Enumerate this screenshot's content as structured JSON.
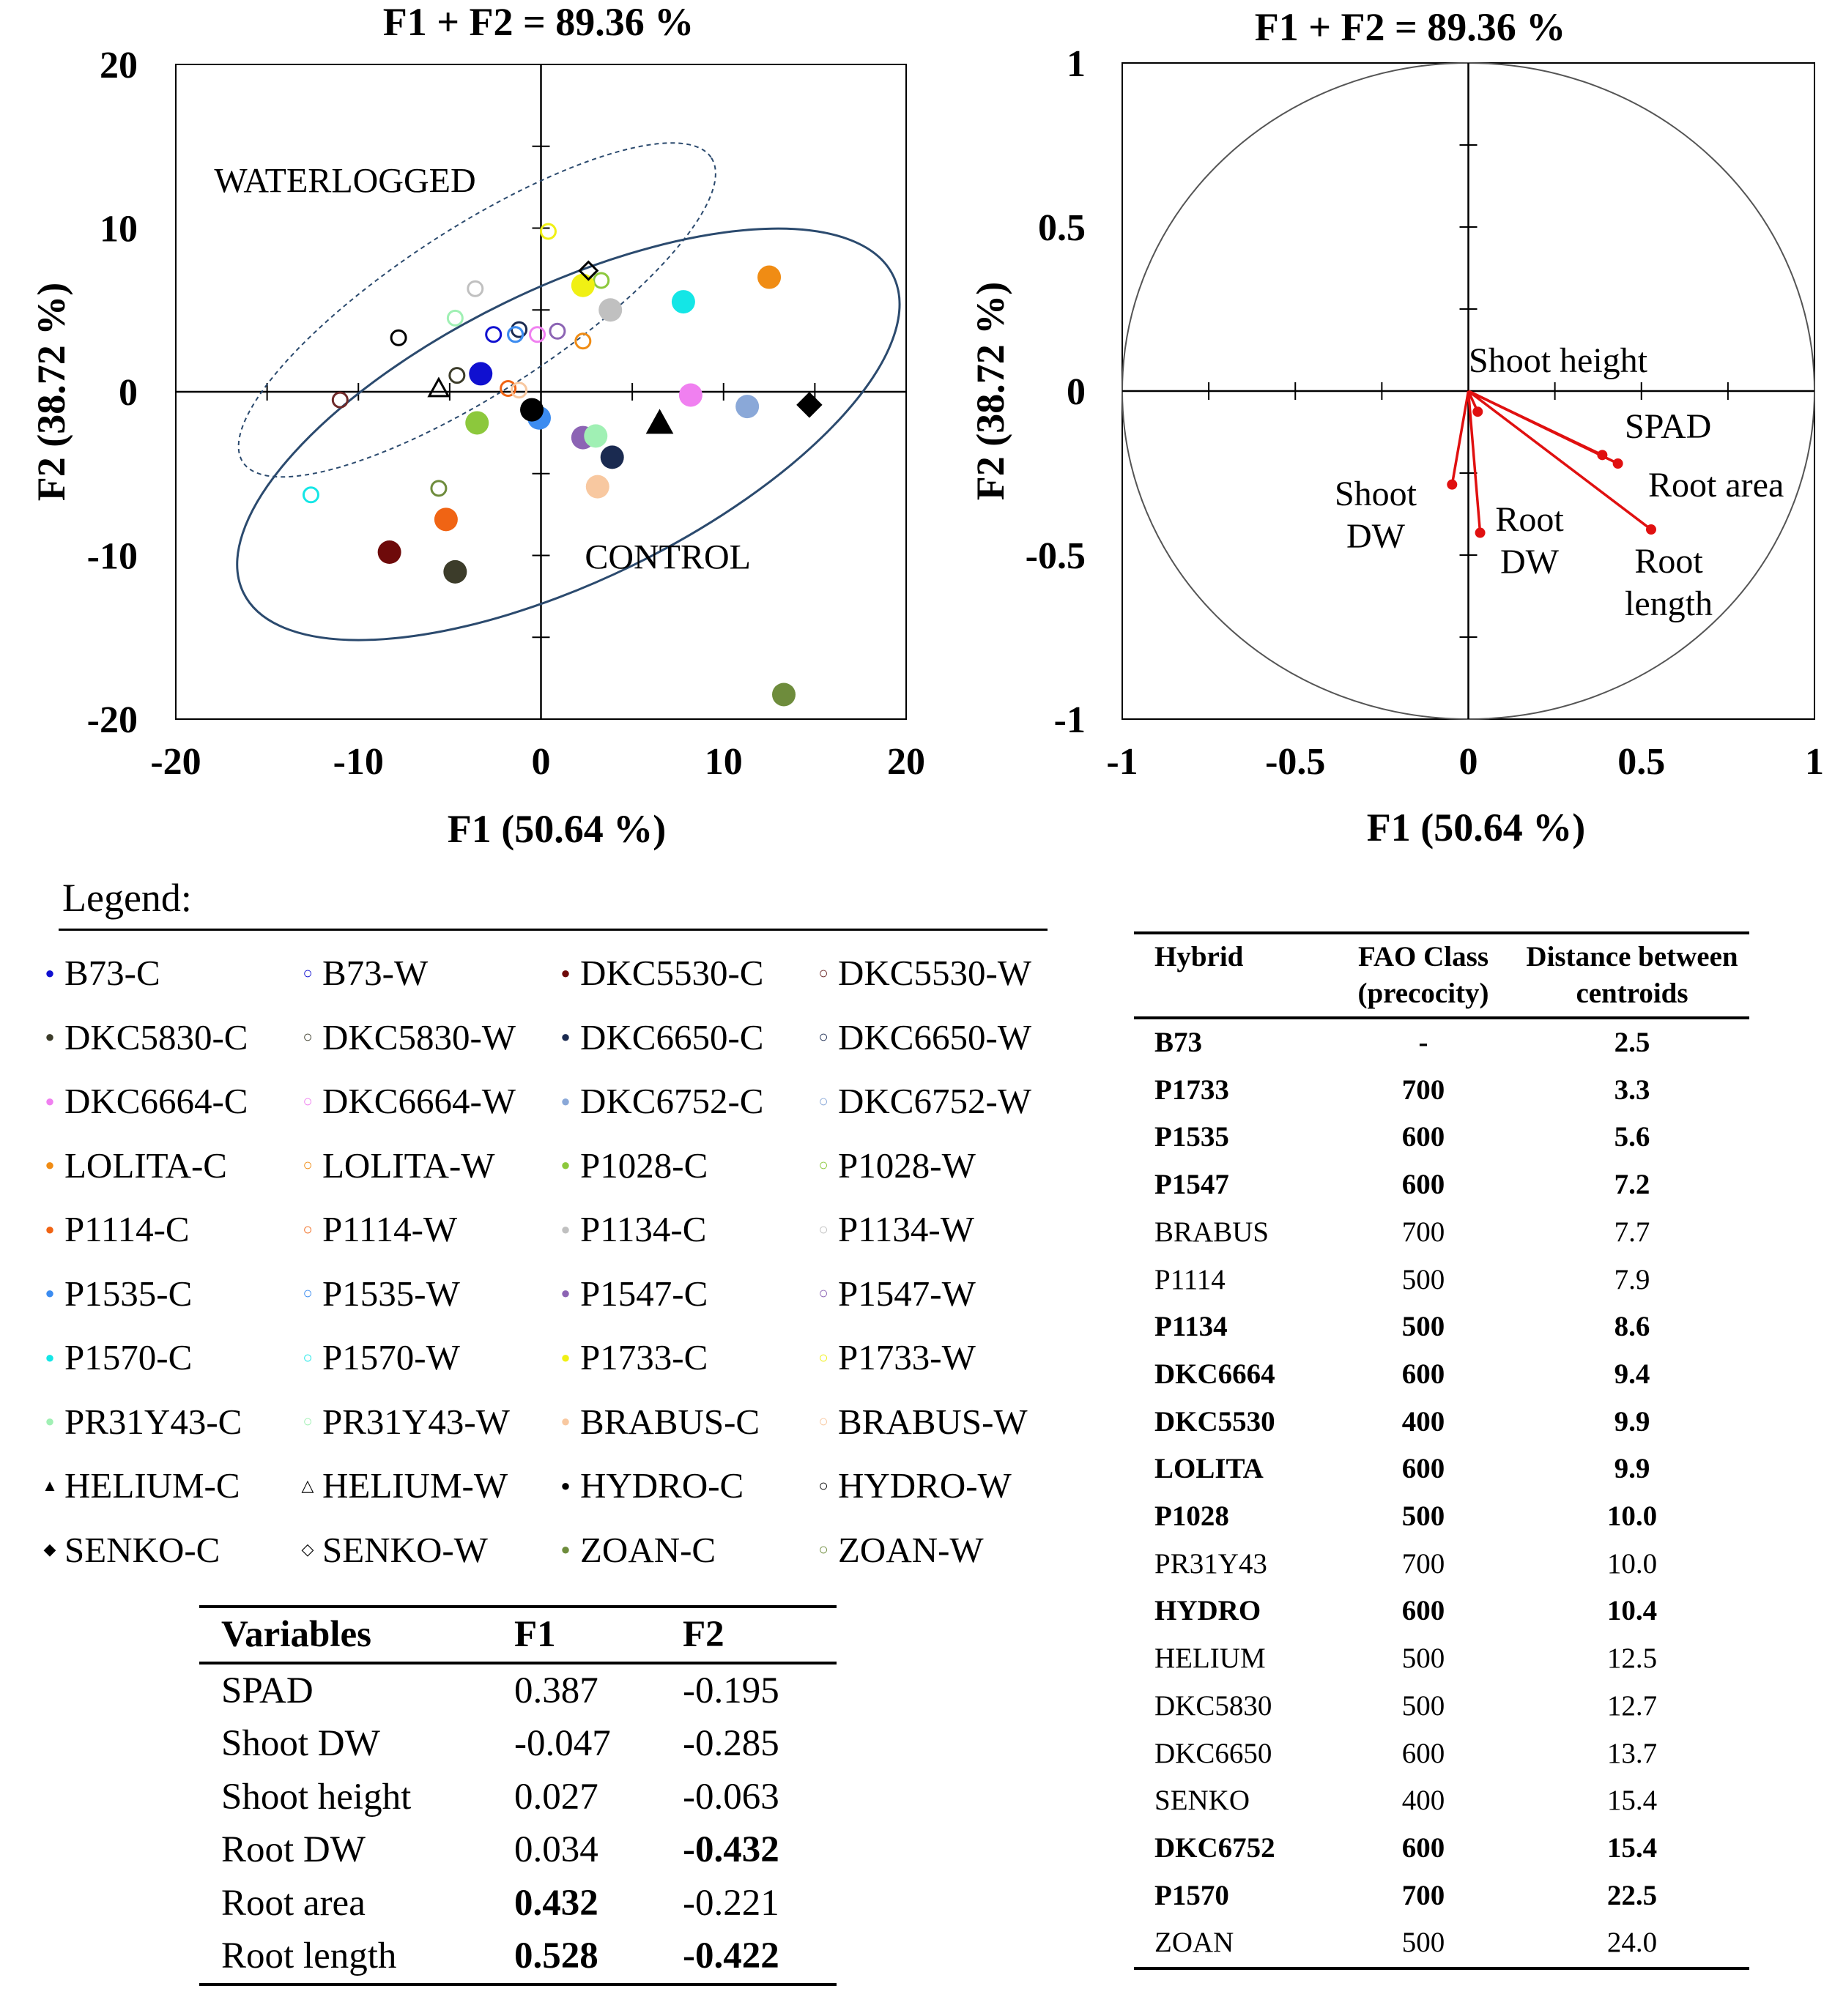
{
  "chart_data": [
    {
      "type": "scatter",
      "title": "F1 + F2 = 89.36 %",
      "xlabel": "F1 (50.64 %)",
      "ylabel": "F2 (38.72 %)",
      "xlim": [
        -20,
        20
      ],
      "ylim": [
        -20,
        20
      ],
      "x_ticks": [
        "-20",
        "-10",
        "0",
        "10",
        "20"
      ],
      "y_ticks": [
        "20",
        "10",
        "0",
        "-10",
        "-20"
      ],
      "annotations": [
        "WATERLOGGED",
        "CONTROL"
      ],
      "series": [
        {
          "name": "B73-C",
          "color": "#1010d0",
          "filled": true,
          "marker": "circle",
          "x": -3.3,
          "y": 1.1
        },
        {
          "name": "B73-W",
          "color": "#1010d0",
          "filled": false,
          "marker": "circle",
          "x": -2.6,
          "y": 3.5
        },
        {
          "name": "DKC5530-C",
          "color": "#6e0a0a",
          "filled": true,
          "marker": "circle",
          "x": -8.3,
          "y": -9.8
        },
        {
          "name": "DKC5530-W",
          "color": "#6e2a2a",
          "filled": false,
          "marker": "circle",
          "x": -11.0,
          "y": -0.5
        },
        {
          "name": "DKC5830-C",
          "color": "#3c3c2a",
          "filled": true,
          "marker": "circle",
          "x": -4.7,
          "y": -11.0
        },
        {
          "name": "DKC5830-W",
          "color": "#3c3c2a",
          "filled": false,
          "marker": "circle",
          "x": -4.6,
          "y": 1.0
        },
        {
          "name": "DKC6650-C",
          "color": "#1a2a50",
          "filled": true,
          "marker": "circle",
          "x": 3.9,
          "y": -4.0
        },
        {
          "name": "DKC6650-W",
          "color": "#1a2a50",
          "filled": false,
          "marker": "circle",
          "x": -1.2,
          "y": 3.8
        },
        {
          "name": "DKC6664-C",
          "color": "#f080f0",
          "filled": true,
          "marker": "circle",
          "x": 8.2,
          "y": -0.2
        },
        {
          "name": "DKC6664-W",
          "color": "#f080f0",
          "filled": false,
          "marker": "circle",
          "x": -0.2,
          "y": 3.5
        },
        {
          "name": "DKC6752-C",
          "color": "#8aa8d8",
          "filled": true,
          "marker": "circle",
          "x": 11.3,
          "y": -0.9
        },
        {
          "name": "DKC6752-W",
          "color": "#8aa8d8",
          "filled": false,
          "marker": "circle",
          "x": -1.4,
          "y": 3.5
        },
        {
          "name": "LOLITA-C",
          "color": "#f08c14",
          "filled": true,
          "marker": "circle",
          "x": 12.5,
          "y": 7.0
        },
        {
          "name": "LOLITA-W",
          "color": "#f08c14",
          "filled": false,
          "marker": "circle",
          "x": 2.3,
          "y": 3.1
        },
        {
          "name": "P1028-C",
          "color": "#8cc83c",
          "filled": true,
          "marker": "circle",
          "x": -3.5,
          "y": -1.9
        },
        {
          "name": "P1028-W",
          "color": "#8cc83c",
          "filled": false,
          "marker": "circle",
          "x": 3.3,
          "y": 6.8
        },
        {
          "name": "P1114-C",
          "color": "#f06414",
          "filled": true,
          "marker": "circle",
          "x": -5.2,
          "y": -7.8
        },
        {
          "name": "P1114-W",
          "color": "#f06414",
          "filled": false,
          "marker": "circle",
          "x": -1.8,
          "y": 0.2
        },
        {
          "name": "P1134-C",
          "color": "#c0c0c0",
          "filled": true,
          "marker": "circle",
          "x": 3.8,
          "y": 5.0
        },
        {
          "name": "P1134-W",
          "color": "#c0c0c0",
          "filled": false,
          "marker": "circle",
          "x": -3.6,
          "y": 6.3
        },
        {
          "name": "P1535-C",
          "color": "#3c8cf0",
          "filled": true,
          "marker": "circle",
          "x": -0.1,
          "y": -1.6
        },
        {
          "name": "P1535-W",
          "color": "#3c8cf0",
          "filled": false,
          "marker": "circle",
          "x": -1.4,
          "y": 3.5
        },
        {
          "name": "P1547-C",
          "color": "#8c64b4",
          "filled": true,
          "marker": "circle",
          "x": 2.3,
          "y": -2.8
        },
        {
          "name": "P1547-W",
          "color": "#8c64b4",
          "filled": false,
          "marker": "circle",
          "x": 0.9,
          "y": 3.7
        },
        {
          "name": "P1570-C",
          "color": "#14e6e6",
          "filled": true,
          "marker": "circle",
          "x": 7.8,
          "y": 5.5
        },
        {
          "name": "P1570-W",
          "color": "#14e6e6",
          "filled": false,
          "marker": "circle",
          "x": -12.6,
          "y": -6.3
        },
        {
          "name": "P1733-C",
          "color": "#f0f014",
          "filled": true,
          "marker": "circle",
          "x": 2.3,
          "y": 6.5
        },
        {
          "name": "P1733-W",
          "color": "#f0f014",
          "filled": false,
          "marker": "circle",
          "x": 0.4,
          "y": 9.8
        },
        {
          "name": "PR31Y43-C",
          "color": "#a0f0b4",
          "filled": true,
          "marker": "circle",
          "x": 3.0,
          "y": -2.7
        },
        {
          "name": "PR31Y43-W",
          "color": "#a0f0b4",
          "filled": false,
          "marker": "circle",
          "x": -4.7,
          "y": 4.5
        },
        {
          "name": "BRABUS-C",
          "color": "#f8c8a0",
          "filled": true,
          "marker": "circle",
          "x": 3.1,
          "y": -5.8
        },
        {
          "name": "BRABUS-W",
          "color": "#f8c8a0",
          "filled": false,
          "marker": "circle",
          "x": -1.2,
          "y": 0.1
        },
        {
          "name": "HELIUM-C",
          "color": "#000000",
          "filled": true,
          "marker": "triangle",
          "x": 6.5,
          "y": -1.9
        },
        {
          "name": "HELIUM-W",
          "color": "#000000",
          "filled": false,
          "marker": "triangle",
          "x": -5.6,
          "y": 0.2
        },
        {
          "name": "HYDRO-C",
          "color": "#000000",
          "filled": true,
          "marker": "circle",
          "x": -0.5,
          "y": -1.1
        },
        {
          "name": "HYDRO-W",
          "color": "#000000",
          "filled": false,
          "marker": "circle",
          "x": -7.8,
          "y": 3.3
        },
        {
          "name": "SENKO-C",
          "color": "#000000",
          "filled": true,
          "marker": "diamond",
          "x": 14.7,
          "y": -0.8
        },
        {
          "name": "SENKO-W",
          "color": "#000000",
          "filled": false,
          "marker": "diamond",
          "x": 2.6,
          "y": 7.4
        },
        {
          "name": "ZOAN-C",
          "color": "#6e8c3c",
          "filled": true,
          "marker": "circle",
          "x": 13.3,
          "y": -18.5
        },
        {
          "name": "ZOAN-W",
          "color": "#6e8c3c",
          "filled": false,
          "marker": "circle",
          "x": -5.6,
          "y": -5.9
        }
      ],
      "ellipses": [
        {
          "name": "WATERLOGGED",
          "style": "dashed",
          "cx": -3.5,
          "cy": 5.0,
          "rx": 15.3,
          "ry": 4.5,
          "angle_deg": 33
        },
        {
          "name": "CONTROL",
          "style": "solid",
          "cx": 1.5,
          "cy": -2.6,
          "rx": 19.8,
          "ry": 8.0,
          "angle_deg": 26
        }
      ]
    },
    {
      "type": "line",
      "subtype": "correlation-circle",
      "title": "F1 + F2 = 89.36 %",
      "xlabel": "F1 (50.64 %)",
      "ylabel": "F2 (38.72 %)",
      "xlim": [
        -1,
        1
      ],
      "ylim": [
        -1,
        1
      ],
      "x_ticks": [
        "-1",
        "-0.5",
        "0",
        "0.5",
        "1"
      ],
      "y_ticks": [
        "1",
        "0.5",
        "0",
        "-0.5",
        "-1"
      ],
      "vectors": [
        {
          "label": "SPAD",
          "x": 0.387,
          "y": -0.195
        },
        {
          "label": "Shoot DW",
          "x": -0.047,
          "y": -0.285
        },
        {
          "label": "Shoot height",
          "x": 0.027,
          "y": -0.063
        },
        {
          "label": "Root DW",
          "x": 0.034,
          "y": -0.432
        },
        {
          "label": "Root area",
          "x": 0.432,
          "y": -0.221
        },
        {
          "label": "Root length",
          "x": 0.528,
          "y": -0.422
        }
      ],
      "vector_label_lines": {
        "SPAD": [
          "SPAD"
        ],
        "Shoot DW": [
          "Shoot",
          "DW"
        ],
        "Shoot height": [
          "Shoot height"
        ],
        "Root DW": [
          "Root",
          "DW"
        ],
        "Root area": [
          "Root area"
        ],
        "Root length": [
          "Root",
          "length"
        ]
      }
    }
  ],
  "legend": {
    "title": "Legend:"
  },
  "variables_table": {
    "headers": [
      "Variables",
      "F1",
      "F2"
    ],
    "rows": [
      {
        "name": "SPAD",
        "f1": "0.387",
        "f2": "-0.195",
        "f1_bold": false,
        "f2_bold": false
      },
      {
        "name": "Shoot DW",
        "f1": "-0.047",
        "f2": "-0.285",
        "f1_bold": false,
        "f2_bold": false
      },
      {
        "name": "Shoot height",
        "f1": "0.027",
        "f2": "-0.063",
        "f1_bold": false,
        "f2_bold": false
      },
      {
        "name": "Root DW",
        "f1": "0.034",
        "f2": "-0.432",
        "f1_bold": false,
        "f2_bold": true
      },
      {
        "name": "Root area",
        "f1": "0.432",
        "f2": "-0.221",
        "f1_bold": true,
        "f2_bold": false
      },
      {
        "name": "Root length",
        "f1": "0.528",
        "f2": "-0.422",
        "f1_bold": true,
        "f2_bold": true
      }
    ]
  },
  "hybrid_table": {
    "headers": {
      "hybrid": "Hybrid",
      "fao_line1": "FAO Class",
      "fao_line2": "(precocity)",
      "dist_line1": "Distance between",
      "dist_line2": "centroids"
    },
    "rows": [
      {
        "hybrid": "B73",
        "fao": "-",
        "distance": "2.5",
        "bold": true
      },
      {
        "hybrid": "P1733",
        "fao": "700",
        "distance": "3.3",
        "bold": true
      },
      {
        "hybrid": "P1535",
        "fao": "600",
        "distance": "5.6",
        "bold": true
      },
      {
        "hybrid": "P1547",
        "fao": "600",
        "distance": "7.2",
        "bold": true
      },
      {
        "hybrid": "BRABUS",
        "fao": "700",
        "distance": "7.7",
        "bold": false
      },
      {
        "hybrid": "P1114",
        "fao": "500",
        "distance": "7.9",
        "bold": false
      },
      {
        "hybrid": "P1134",
        "fao": "500",
        "distance": "8.6",
        "bold": true
      },
      {
        "hybrid": "DKC6664",
        "fao": "600",
        "distance": "9.4",
        "bold": true
      },
      {
        "hybrid": "DKC5530",
        "fao": "400",
        "distance": "9.9",
        "bold": true
      },
      {
        "hybrid": "LOLITA",
        "fao": "600",
        "distance": "9.9",
        "bold": true
      },
      {
        "hybrid": "P1028",
        "fao": "500",
        "distance": "10.0",
        "bold": true
      },
      {
        "hybrid": "PR31Y43",
        "fao": "700",
        "distance": "10.0",
        "bold": false
      },
      {
        "hybrid": "HYDRO",
        "fao": "600",
        "distance": "10.4",
        "bold": true
      },
      {
        "hybrid": "HELIUM",
        "fao": "500",
        "distance": "12.5",
        "bold": false
      },
      {
        "hybrid": "DKC5830",
        "fao": "500",
        "distance": "12.7",
        "bold": false
      },
      {
        "hybrid": "DKC6650",
        "fao": "600",
        "distance": "13.7",
        "bold": false
      },
      {
        "hybrid": "SENKO",
        "fao": "400",
        "distance": "15.4",
        "bold": false
      },
      {
        "hybrid": "DKC6752",
        "fao": "600",
        "distance": "15.4",
        "bold": true
      },
      {
        "hybrid": "P1570",
        "fao": "700",
        "distance": "22.5",
        "bold": true
      },
      {
        "hybrid": "ZOAN",
        "fao": "500",
        "distance": "24.0",
        "bold": false
      }
    ]
  }
}
